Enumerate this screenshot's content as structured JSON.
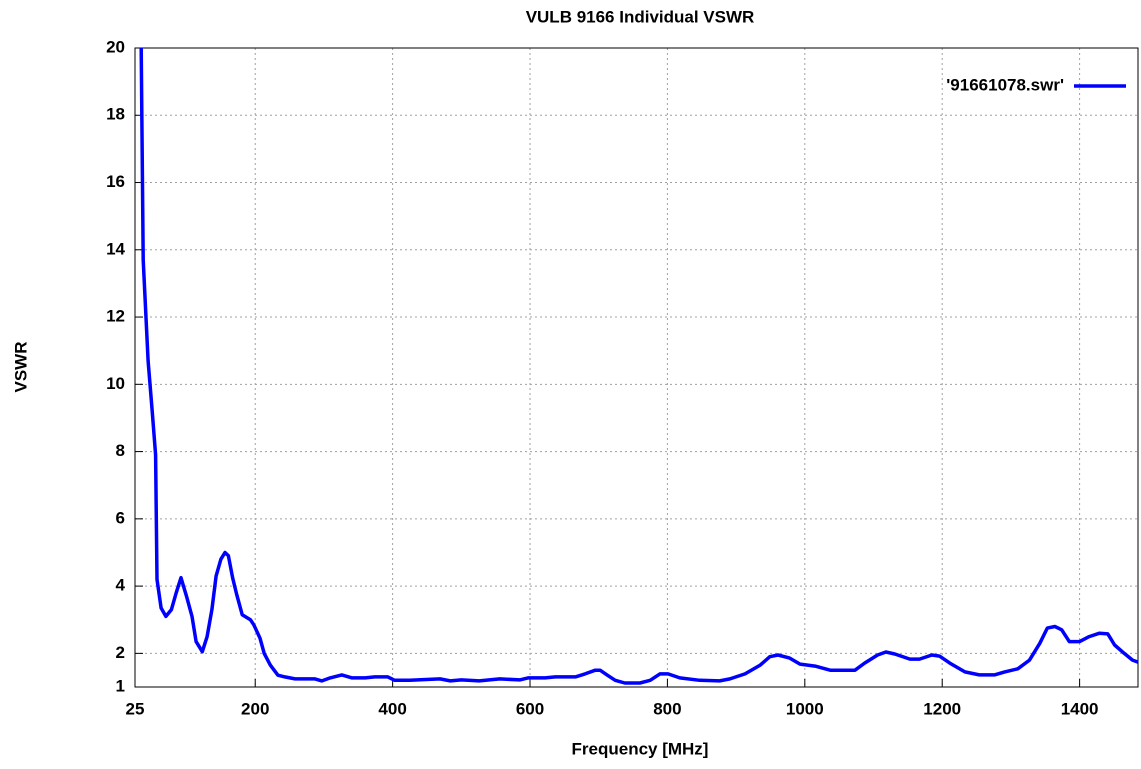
{
  "chart_data": {
    "type": "line",
    "title": "VULB 9166 Individual VSWR",
    "x_label": "Frequency [MHz]",
    "y_label": "VSWR",
    "x": [
      34,
      37,
      44,
      50,
      55,
      57,
      63,
      70,
      78,
      85,
      92,
      100,
      108,
      114,
      123,
      130,
      137,
      143,
      150,
      156,
      161,
      167,
      173,
      181,
      193,
      198,
      207,
      213,
      222,
      233,
      243,
      258,
      287,
      297,
      309,
      326,
      341,
      360,
      374,
      393,
      403,
      425,
      469,
      484,
      500,
      526,
      556,
      585,
      597,
      622,
      637,
      666,
      680,
      695,
      702,
      712,
      724,
      738,
      760,
      775,
      789,
      801,
      818,
      847,
      876,
      891,
      913,
      935,
      949,
      961,
      978,
      993,
      1015,
      1037,
      1073,
      1087,
      1106,
      1118,
      1131,
      1153,
      1167,
      1185,
      1196,
      1211,
      1233,
      1254,
      1276,
      1291,
      1310,
      1327,
      1342,
      1353,
      1364,
      1374,
      1385,
      1400,
      1414,
      1429,
      1441,
      1451,
      1465,
      1477,
      1485
    ],
    "series": [
      {
        "name": "'91661078.swr'",
        "color": "#0000ff",
        "values": [
          20,
          13.7,
          10.7,
          9.2,
          7.9,
          4.2,
          3.35,
          3.1,
          3.3,
          3.8,
          4.25,
          3.7,
          3.1,
          2.35,
          2.05,
          2.5,
          3.3,
          4.3,
          4.8,
          5.0,
          4.9,
          4.25,
          3.75,
          3.15,
          3.0,
          2.85,
          2.45,
          2.0,
          1.65,
          1.35,
          1.3,
          1.24,
          1.24,
          1.18,
          1.27,
          1.36,
          1.27,
          1.27,
          1.3,
          1.3,
          1.2,
          1.2,
          1.24,
          1.18,
          1.21,
          1.18,
          1.24,
          1.21,
          1.27,
          1.27,
          1.3,
          1.3,
          1.39,
          1.5,
          1.5,
          1.36,
          1.2,
          1.12,
          1.12,
          1.2,
          1.39,
          1.39,
          1.27,
          1.2,
          1.18,
          1.24,
          1.39,
          1.65,
          1.9,
          1.95,
          1.86,
          1.68,
          1.62,
          1.5,
          1.5,
          1.71,
          1.95,
          2.04,
          1.98,
          1.83,
          1.83,
          1.95,
          1.92,
          1.71,
          1.45,
          1.36,
          1.36,
          1.45,
          1.54,
          1.8,
          2.3,
          2.75,
          2.8,
          2.7,
          2.35,
          2.35,
          2.5,
          2.6,
          2.58,
          2.25,
          2.0,
          1.8,
          1.74
        ]
      }
    ],
    "xlim": [
      25,
      1485
    ],
    "ylim": [
      1,
      20
    ],
    "xticks": [
      25,
      200,
      400,
      600,
      800,
      1000,
      1200,
      1400
    ],
    "yticks": [
      1,
      2,
      4,
      6,
      8,
      10,
      12,
      14,
      16,
      18,
      20
    ],
    "grid": true,
    "legend": "top right"
  }
}
